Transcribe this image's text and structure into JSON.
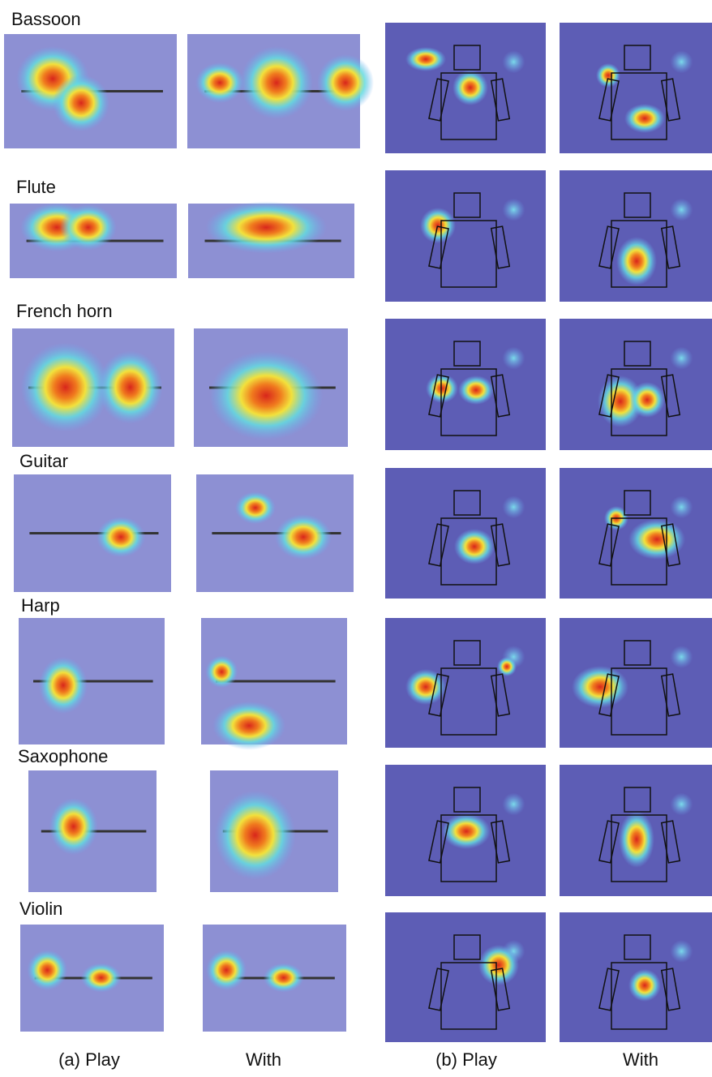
{
  "rows": [
    {
      "label": "Bassoon"
    },
    {
      "label": "Flute"
    },
    {
      "label": "French horn"
    },
    {
      "label": "Guitar"
    },
    {
      "label": "Harp"
    },
    {
      "label": "Saxophone"
    },
    {
      "label": "Violin"
    }
  ],
  "captions": [
    "(a) Play",
    "With",
    "(b) Play",
    "With"
  ]
}
